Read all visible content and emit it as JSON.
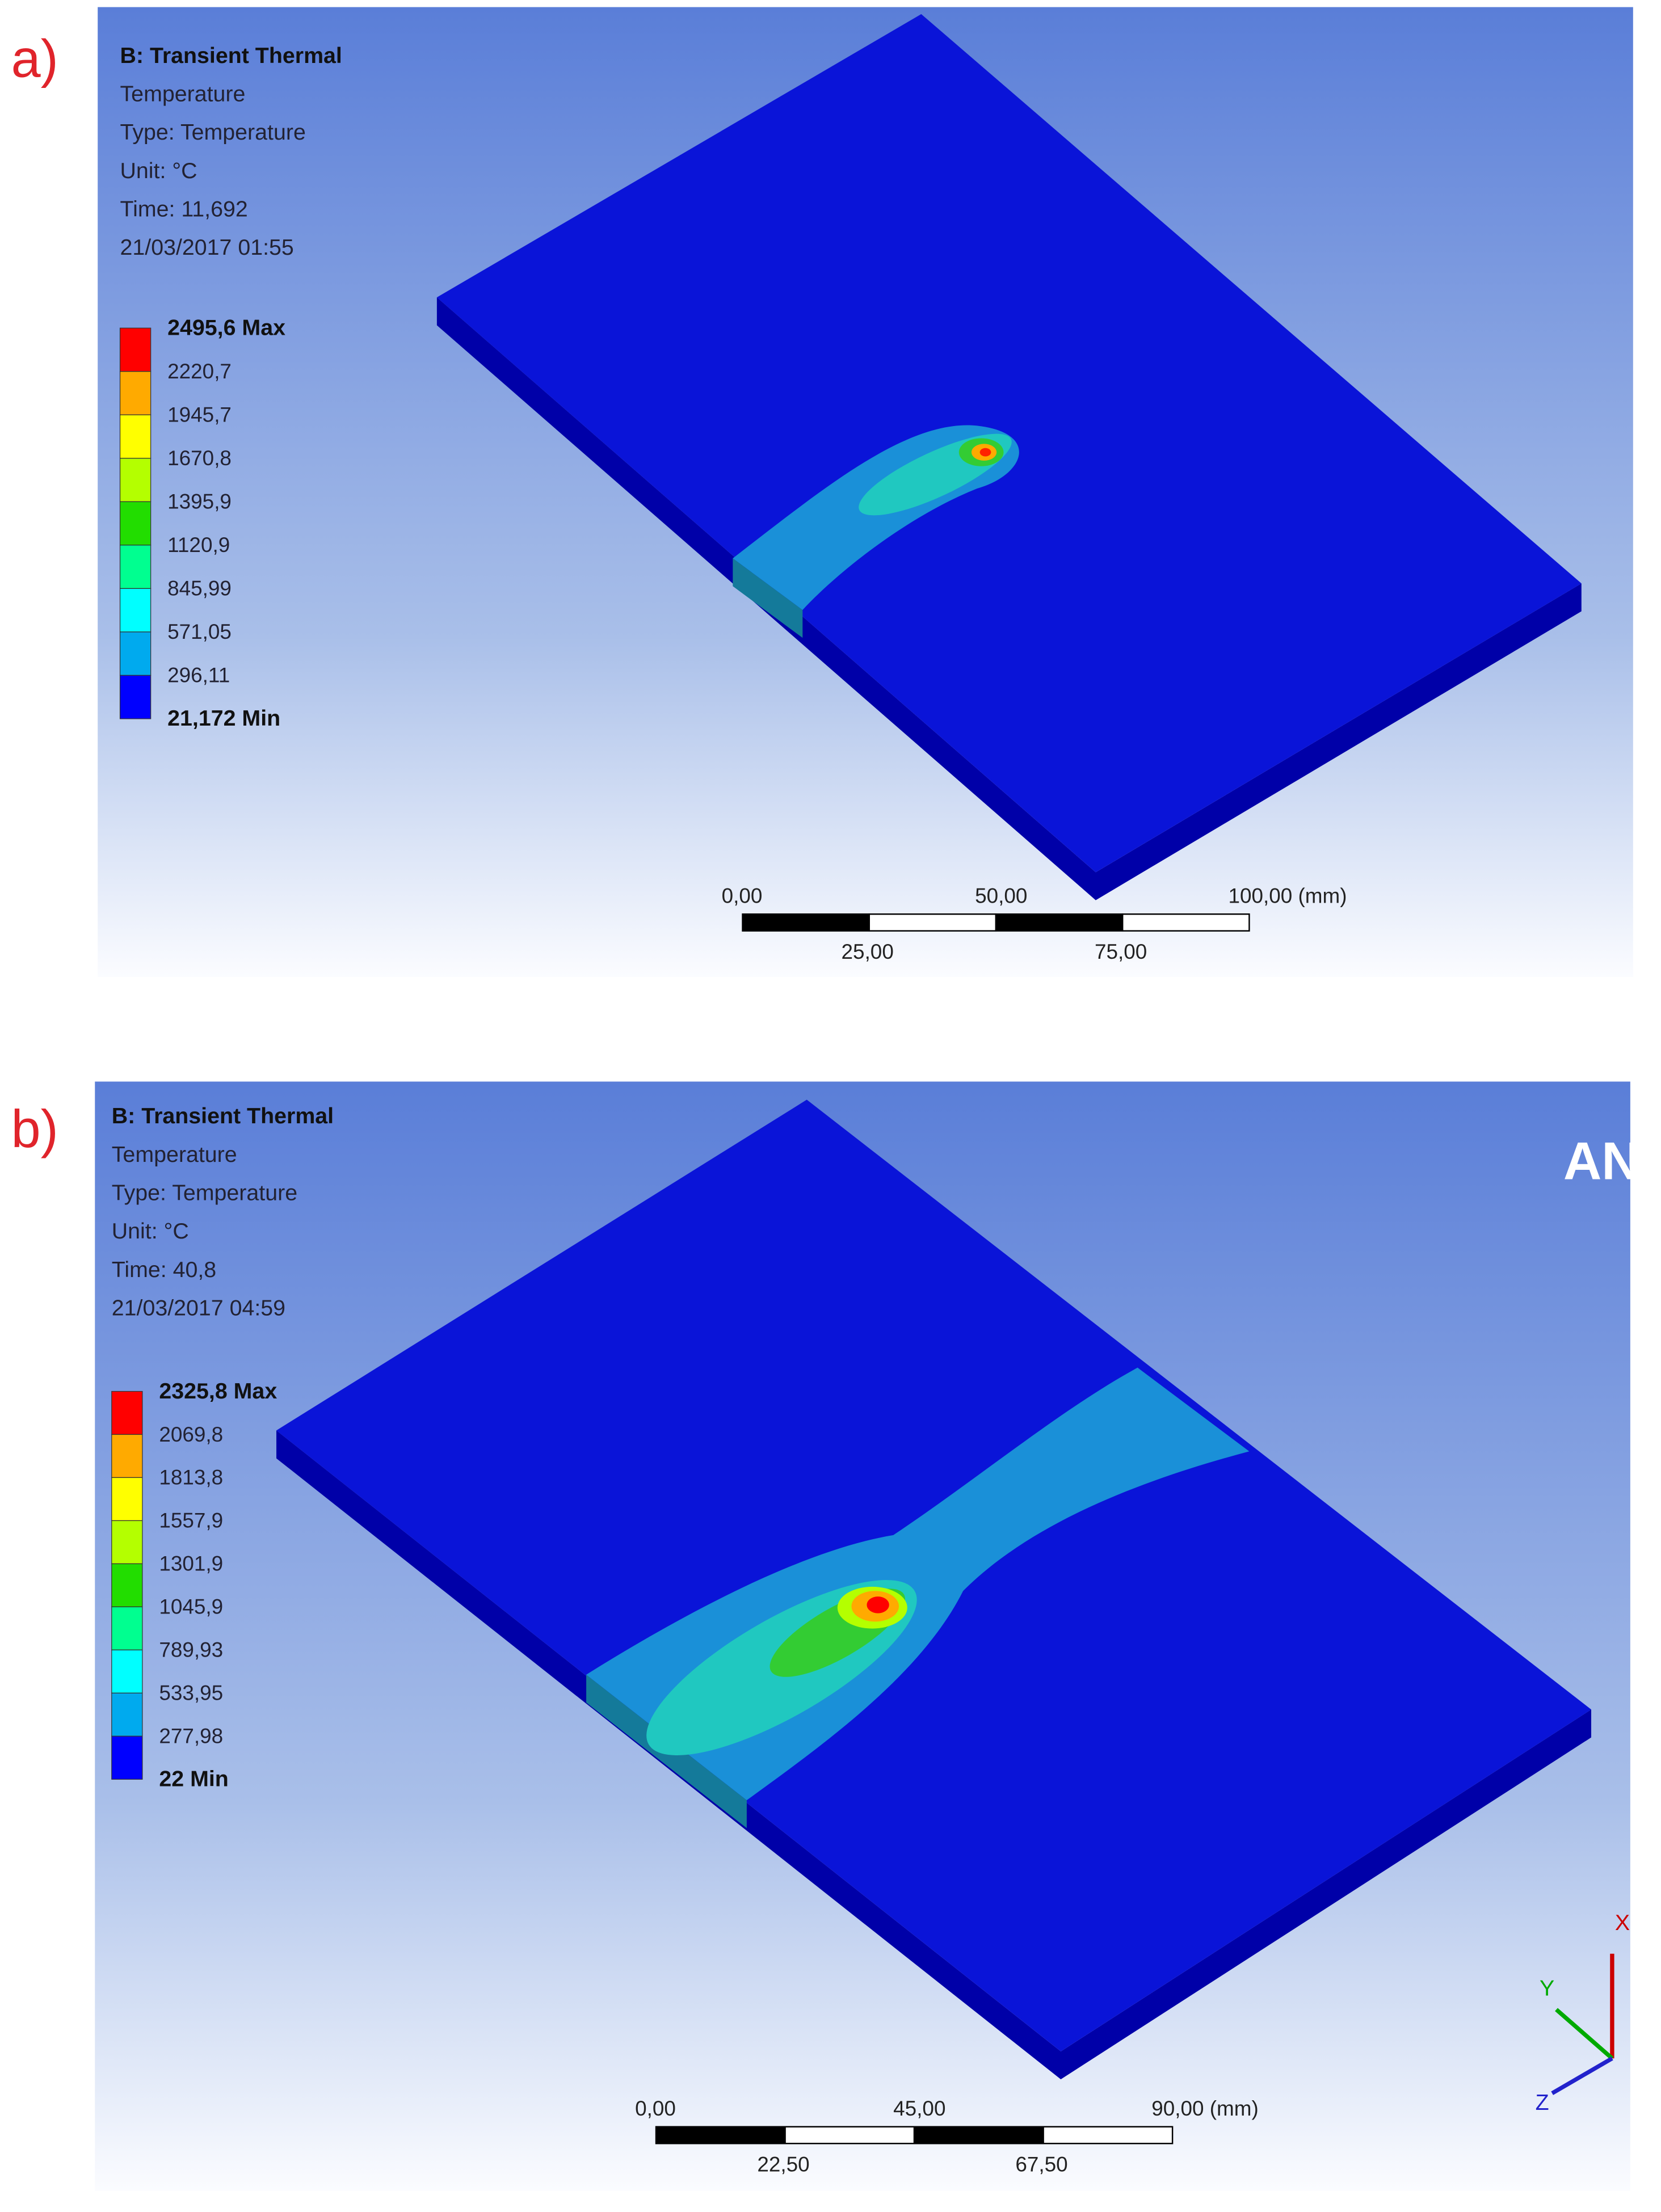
{
  "panels": [
    {
      "label": "a)",
      "header": [
        "B: Transient Thermal",
        "Temperature",
        "Type: Temperature",
        "Unit: °C",
        "Time: 11,692",
        "21/03/2017 01:55"
      ],
      "legend": {
        "labels": [
          "2495,6 Max",
          "2220,7",
          "1945,7",
          "1670,8",
          "1395,9",
          "1120,9",
          "845,99",
          "571,05",
          "296,11",
          "21,172 Min"
        ],
        "colors": [
          "#ff0000",
          "#ffaa00",
          "#ffff00",
          "#b4ff00",
          "#22dd00",
          "#00ff90",
          "#00ffff",
          "#00aaee",
          "#0000ff"
        ]
      },
      "scale": {
        "top": [
          "0,00",
          "50,00",
          "100,00 (mm)"
        ],
        "bottom": [
          "25,00",
          "75,00"
        ]
      }
    },
    {
      "label": "b)",
      "header": [
        "B: Transient Thermal",
        "Temperature",
        "Type: Temperature",
        "Unit: °C",
        "Time: 40,8",
        "21/03/2017 04:59"
      ],
      "legend": {
        "labels": [
          "2325,8 Max",
          "2069,8",
          "1813,8",
          "1557,9",
          "1301,9",
          "1045,9",
          "789,93",
          "533,95",
          "277,98",
          "22 Min"
        ],
        "colors": [
          "#ff0000",
          "#ffaa00",
          "#ffff00",
          "#b4ff00",
          "#22dd00",
          "#00ff90",
          "#00ffff",
          "#00aaee",
          "#0000ff"
        ]
      },
      "scale": {
        "top": [
          "0,00",
          "45,00",
          "90,00 (mm)"
        ],
        "bottom": [
          "22,50",
          "67,50"
        ]
      },
      "logo": "AN",
      "axes": [
        "X",
        "Y",
        "Z"
      ]
    }
  ]
}
